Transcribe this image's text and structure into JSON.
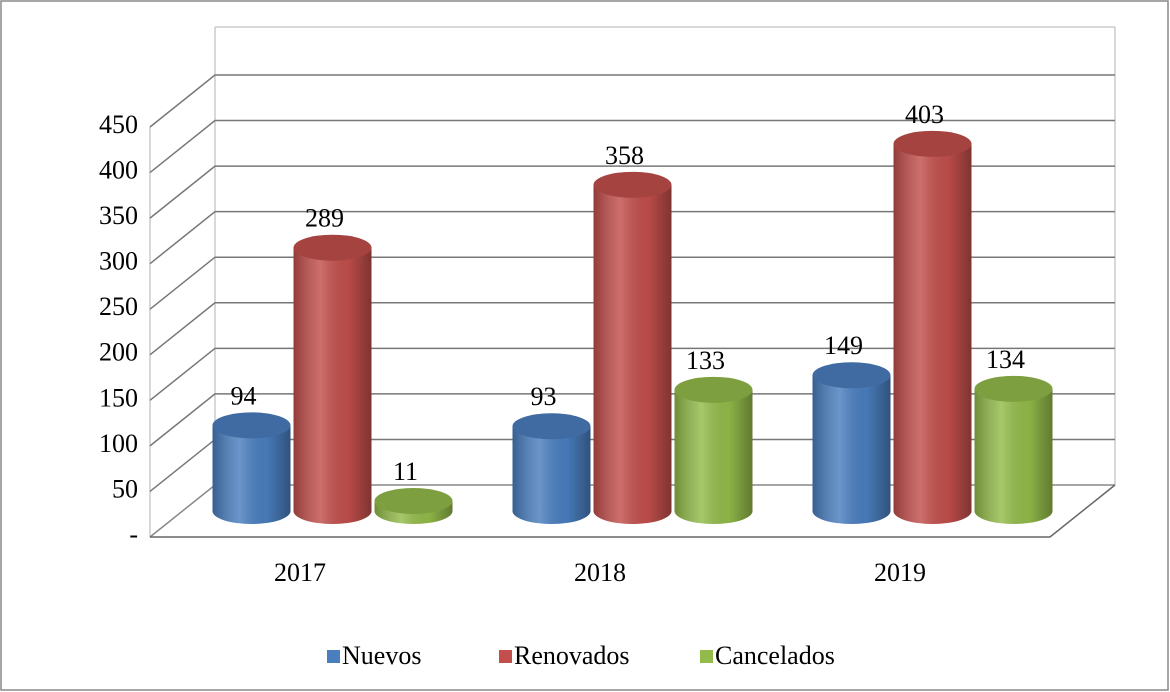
{
  "chart_data": {
    "type": "bar3d",
    "categories": [
      "2017",
      "2018",
      "2019"
    ],
    "series": [
      {
        "name": "Nuevos",
        "color": "#4a7ebf",
        "values": [
          94,
          93,
          149
        ]
      },
      {
        "name": "Renovados",
        "color": "#c24f4c",
        "values": [
          289,
          358,
          403
        ]
      },
      {
        "name": "Cancelados",
        "color": "#93bb4a",
        "values": [
          11,
          133,
          134
        ]
      }
    ],
    "ylim": [
      0,
      450
    ],
    "yticks": [
      {
        "value": 0,
        "label": "-"
      },
      50,
      100,
      150,
      200,
      250,
      300,
      350,
      400,
      450
    ],
    "grid": true,
    "legend": "bottom"
  }
}
